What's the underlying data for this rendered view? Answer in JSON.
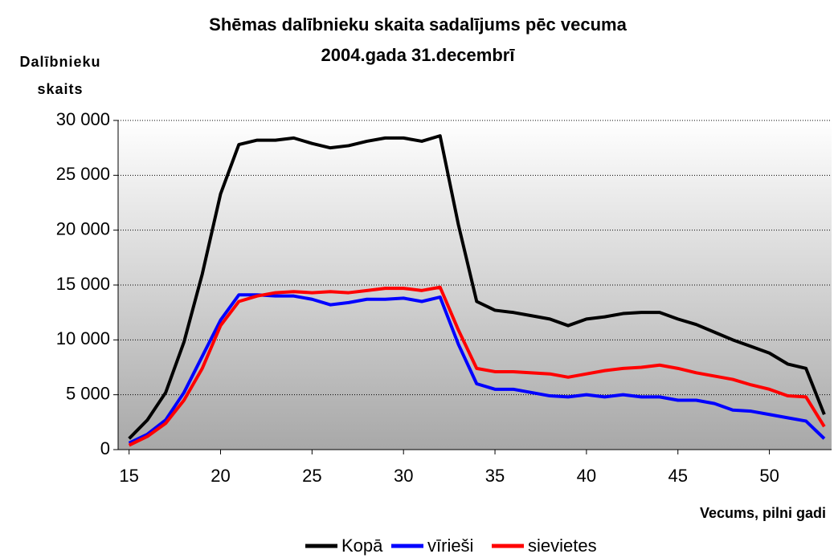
{
  "chart_data": {
    "type": "line",
    "title": "Shēmas dalībnieku skaita sadalījums pēc vecuma",
    "subtitle": "2004.gada 31.decembrī",
    "y_label": "Dalībnieku skaits",
    "x_label": "Vecums, pilni gadi",
    "x": [
      15,
      16,
      17,
      18,
      19,
      20,
      21,
      22,
      23,
      24,
      25,
      26,
      27,
      28,
      29,
      30,
      31,
      32,
      33,
      34,
      35,
      36,
      37,
      38,
      39,
      40,
      41,
      42,
      43,
      44,
      45,
      46,
      47,
      48,
      49,
      50,
      51,
      52,
      53
    ],
    "series": [
      {
        "name": "Kopā",
        "color": "#000000",
        "values": [
          1000,
          2700,
          5200,
          9800,
          16000,
          23300,
          27800,
          28200,
          28200,
          28400,
          27900,
          27500,
          27700,
          28100,
          28400,
          28400,
          28100,
          28600,
          20500,
          13500,
          12700,
          12500,
          12200,
          11900,
          11300,
          11900,
          12100,
          12400,
          12500,
          12500,
          11900,
          11400,
          10700,
          10000,
          9400,
          8800,
          7800,
          7400,
          3200
        ]
      },
      {
        "name": "vīrieši",
        "color": "#0000ff",
        "values": [
          600,
          1400,
          2700,
          5200,
          8500,
          11800,
          14100,
          14100,
          14000,
          14000,
          13700,
          13200,
          13400,
          13700,
          13700,
          13800,
          13500,
          13900,
          9600,
          6000,
          5500,
          5500,
          5200,
          4900,
          4800,
          5000,
          4800,
          5000,
          4800,
          4800,
          4500,
          4500,
          4200,
          3600,
          3500,
          3200,
          2900,
          2600,
          1000
        ]
      },
      {
        "name": "sievietes",
        "color": "#ff0000",
        "values": [
          400,
          1200,
          2400,
          4500,
          7400,
          11300,
          13500,
          14000,
          14300,
          14400,
          14300,
          14400,
          14300,
          14500,
          14700,
          14700,
          14500,
          14800,
          10900,
          7400,
          7100,
          7100,
          7000,
          6900,
          6600,
          6900,
          7200,
          7400,
          7500,
          7700,
          7400,
          7000,
          6700,
          6400,
          5900,
          5500,
          4900,
          4800,
          2100
        ]
      }
    ],
    "xlim": [
      14.4,
      53.4
    ],
    "xticks": [
      15,
      20,
      25,
      30,
      35,
      40,
      45,
      50
    ],
    "ylim": [
      0,
      30000
    ],
    "yticks": [
      0,
      {
        "value": 5000,
        "label": "5 000"
      },
      {
        "value": 10000,
        "label": "10 000"
      },
      {
        "value": 15000,
        "label": "15 000"
      },
      {
        "value": 20000,
        "label": "20 000"
      },
      {
        "value": 25000,
        "label": "25 000"
      },
      {
        "value": 30000,
        "label": "30 000"
      }
    ],
    "grid": true,
    "legend": "bottom"
  }
}
